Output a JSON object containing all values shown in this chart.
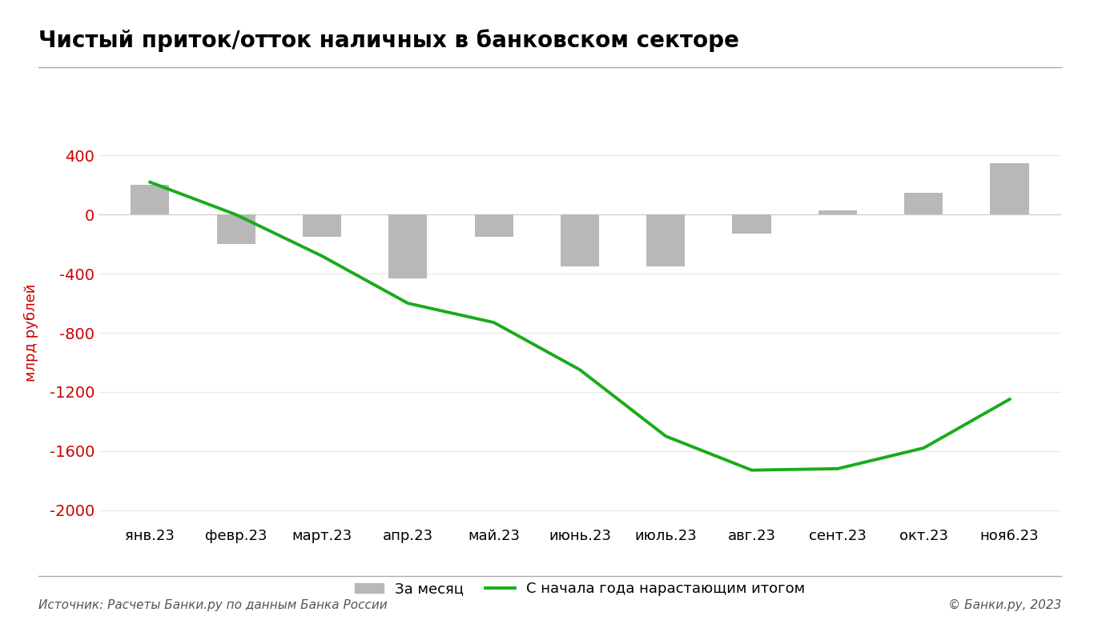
{
  "title": "Чистый приток/отток наличных в банковском секторе",
  "categories": [
    "янв.23",
    "февр.23",
    "март.23",
    "апр.23",
    "май.23",
    "июнь.23",
    "июль.23",
    "авг.23",
    "сент.23",
    "окт.23",
    "ноя6.23"
  ],
  "bar_values": [
    200,
    -200,
    -150,
    -430,
    -150,
    -350,
    -350,
    -130,
    30,
    150,
    350
  ],
  "line_values": [
    220,
    0,
    -280,
    -600,
    -730,
    -1050,
    -1500,
    -1730,
    -1720,
    -1580,
    -1250
  ],
  "bar_color": "#b8b8b8",
  "line_color": "#1aab1a",
  "ylabel": "млрд рублей",
  "ylabel_color": "#cc0000",
  "ytick_color": "#cc0000",
  "ylim": [
    -2100,
    500
  ],
  "yticks": [
    -2000,
    -1600,
    -1200,
    -800,
    -400,
    0,
    400
  ],
  "background_color": "#ffffff",
  "title_fontsize": 20,
  "legend_label_bar": "За месяц",
  "legend_label_line": "С начала года нарастающим итогом",
  "source_text": "Источник: Расчеты Банки.ру по данным Банка России",
  "copyright_text": "© Банки.ру, 2023",
  "line_width": 2.8,
  "bar_width": 0.45
}
